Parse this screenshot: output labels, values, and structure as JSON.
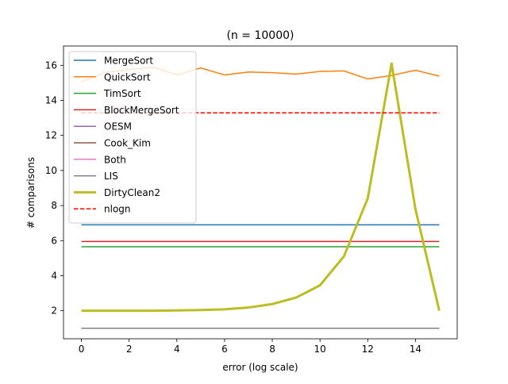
{
  "chart_data": {
    "type": "line",
    "title": "(n = 10000)",
    "xlabel": "error (log scale)",
    "ylabel": "# comparisons",
    "xlim": [
      -0.75,
      15.75
    ],
    "ylim": [
      0.4,
      17.1
    ],
    "xticks": [
      0,
      2,
      4,
      6,
      8,
      10,
      12,
      14
    ],
    "yticks": [
      2,
      4,
      6,
      8,
      10,
      12,
      14,
      16
    ],
    "xtick_labels": [
      "0",
      "2",
      "4",
      "6",
      "8",
      "10",
      "12",
      "14"
    ],
    "ytick_labels": [
      "2",
      "4",
      "6",
      "8",
      "10",
      "12",
      "14",
      "16"
    ],
    "grid": false,
    "legend_position": "upper-left",
    "x": [
      0,
      1,
      2,
      3,
      4,
      5,
      6,
      7,
      8,
      9,
      10,
      11,
      12,
      13,
      14,
      15
    ],
    "series": [
      {
        "name": "MergeSort",
        "color": "#1f77b4",
        "style": "solid",
        "width": 1.5,
        "values": [
          6.9,
          6.9,
          6.9,
          6.9,
          6.9,
          6.9,
          6.9,
          6.9,
          6.9,
          6.9,
          6.9,
          6.9,
          6.9,
          6.9,
          6.9,
          6.9
        ]
      },
      {
        "name": "QuickSort",
        "color": "#ff7f0e",
        "style": "solid",
        "width": 1.5,
        "values": [
          15.05,
          15.6,
          15.75,
          15.9,
          15.45,
          15.85,
          15.45,
          15.62,
          15.58,
          15.5,
          15.65,
          15.68,
          15.22,
          15.42,
          15.72,
          15.38
        ]
      },
      {
        "name": "TimSort",
        "color": "#2ca02c",
        "style": "solid",
        "width": 1.5,
        "values": [
          5.65,
          5.65,
          5.65,
          5.65,
          5.65,
          5.65,
          5.65,
          5.65,
          5.65,
          5.65,
          5.65,
          5.65,
          5.65,
          5.65,
          5.65,
          5.65
        ]
      },
      {
        "name": "BlockMergeSort",
        "color": "#d62728",
        "style": "solid",
        "width": 1.5,
        "values": [
          5.95,
          5.95,
          5.95,
          5.95,
          5.95,
          5.95,
          5.95,
          5.95,
          5.95,
          5.95,
          5.95,
          5.95,
          5.95,
          5.95,
          5.95,
          5.95
        ]
      },
      {
        "name": "OESM",
        "color": "#9467bd",
        "style": "solid",
        "width": 1.5,
        "values": [
          1.0,
          1.0,
          1.0,
          1.0,
          1.0,
          1.0,
          1.0,
          1.0,
          1.0,
          1.0,
          1.0,
          1.0,
          1.0,
          1.0,
          1.0,
          1.0
        ]
      },
      {
        "name": "Cook_Kim",
        "color": "#8c564b",
        "style": "solid",
        "width": 1.5,
        "values": [
          1.0,
          1.0,
          1.0,
          1.0,
          1.0,
          1.0,
          1.0,
          1.0,
          1.0,
          1.0,
          1.0,
          1.0,
          1.0,
          1.0,
          1.0,
          1.0
        ]
      },
      {
        "name": "Both",
        "color": "#e377c2",
        "style": "solid",
        "width": 1.5,
        "values": [
          1.0,
          1.0,
          1.0,
          1.0,
          1.0,
          1.0,
          1.0,
          1.0,
          1.0,
          1.0,
          1.0,
          1.0,
          1.0,
          1.0,
          1.0,
          1.0
        ]
      },
      {
        "name": "LIS",
        "color": "#7f7f7f",
        "style": "solid",
        "width": 1.5,
        "values": [
          1.0,
          1.0,
          1.0,
          1.0,
          1.0,
          1.0,
          1.0,
          1.0,
          1.0,
          1.0,
          1.0,
          1.0,
          1.0,
          1.0,
          1.0,
          1.0
        ]
      },
      {
        "name": "DirtyClean2",
        "color": "#bcbd22",
        "style": "solid",
        "width": 3,
        "values": [
          2.0,
          2.0,
          2.0,
          2.0,
          2.02,
          2.04,
          2.08,
          2.18,
          2.38,
          2.75,
          3.45,
          5.1,
          8.4,
          16.1,
          7.8,
          2.0
        ]
      },
      {
        "name": "nlogn",
        "color": "#ff0000",
        "style": "dashed",
        "width": 1.5,
        "values": [
          13.29,
          13.29,
          13.29,
          13.29,
          13.29,
          13.29,
          13.29,
          13.29,
          13.29,
          13.29,
          13.29,
          13.29,
          13.29,
          13.29,
          13.29,
          13.29
        ]
      }
    ]
  }
}
